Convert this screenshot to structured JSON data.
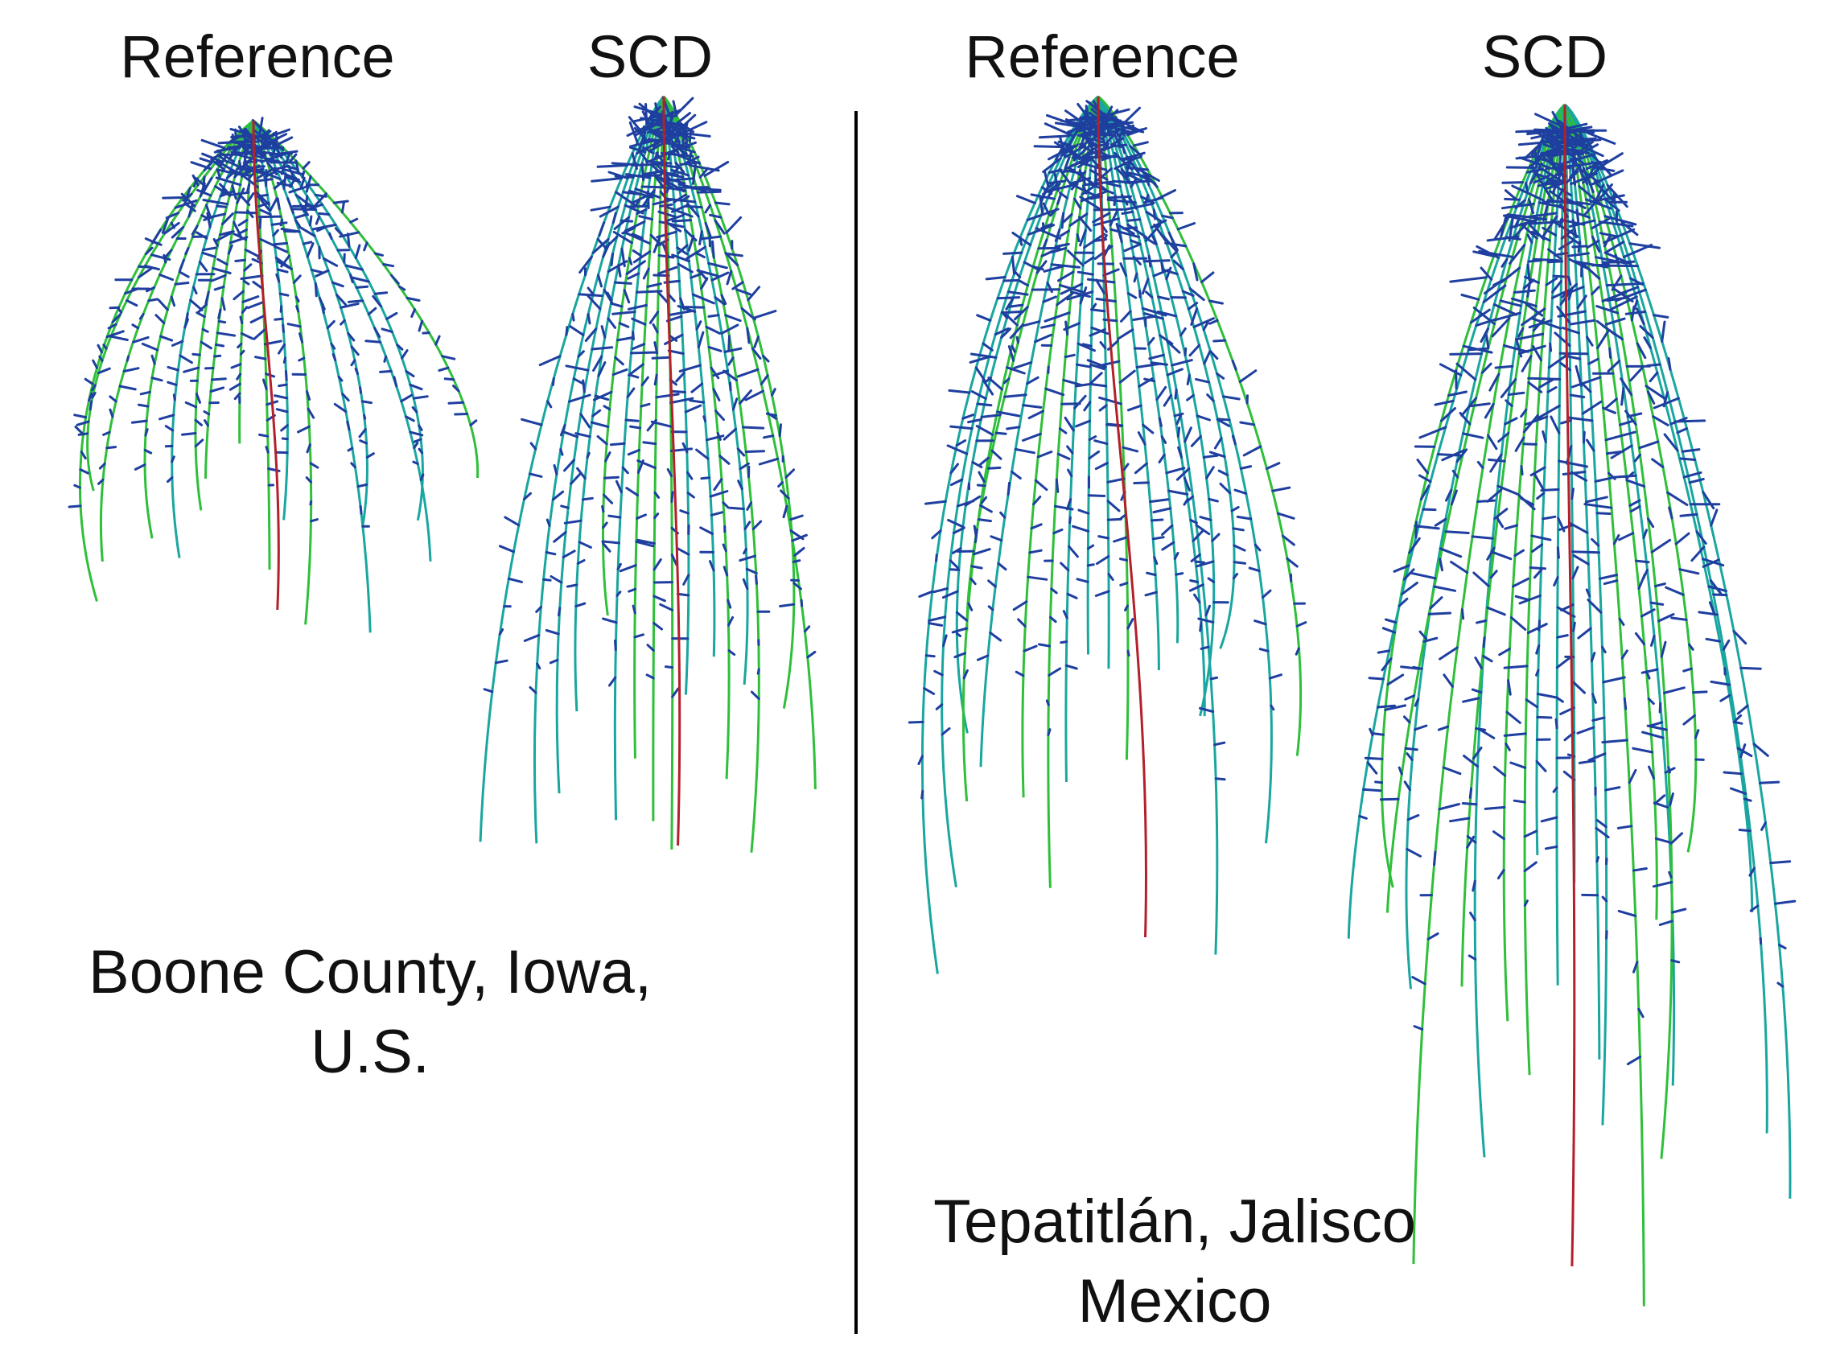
{
  "panels": {
    "left": {
      "headers": [
        "Reference",
        "SCD"
      ],
      "location_line1": "Boone County, Iowa,",
      "location_line2": "U.S."
    },
    "right": {
      "headers": [
        "Reference",
        "SCD"
      ],
      "location_line1": "Tepatitlán, Jalisco",
      "location_line2": "Mexico"
    }
  },
  "colors": {
    "lateral_roots": "#1f3fa0",
    "axial_roots_teal": "#1aa6a0",
    "axial_roots_green": "#2fbf3a",
    "primary_root": "#b3202a",
    "divider": "#000000",
    "text": "#111111"
  }
}
